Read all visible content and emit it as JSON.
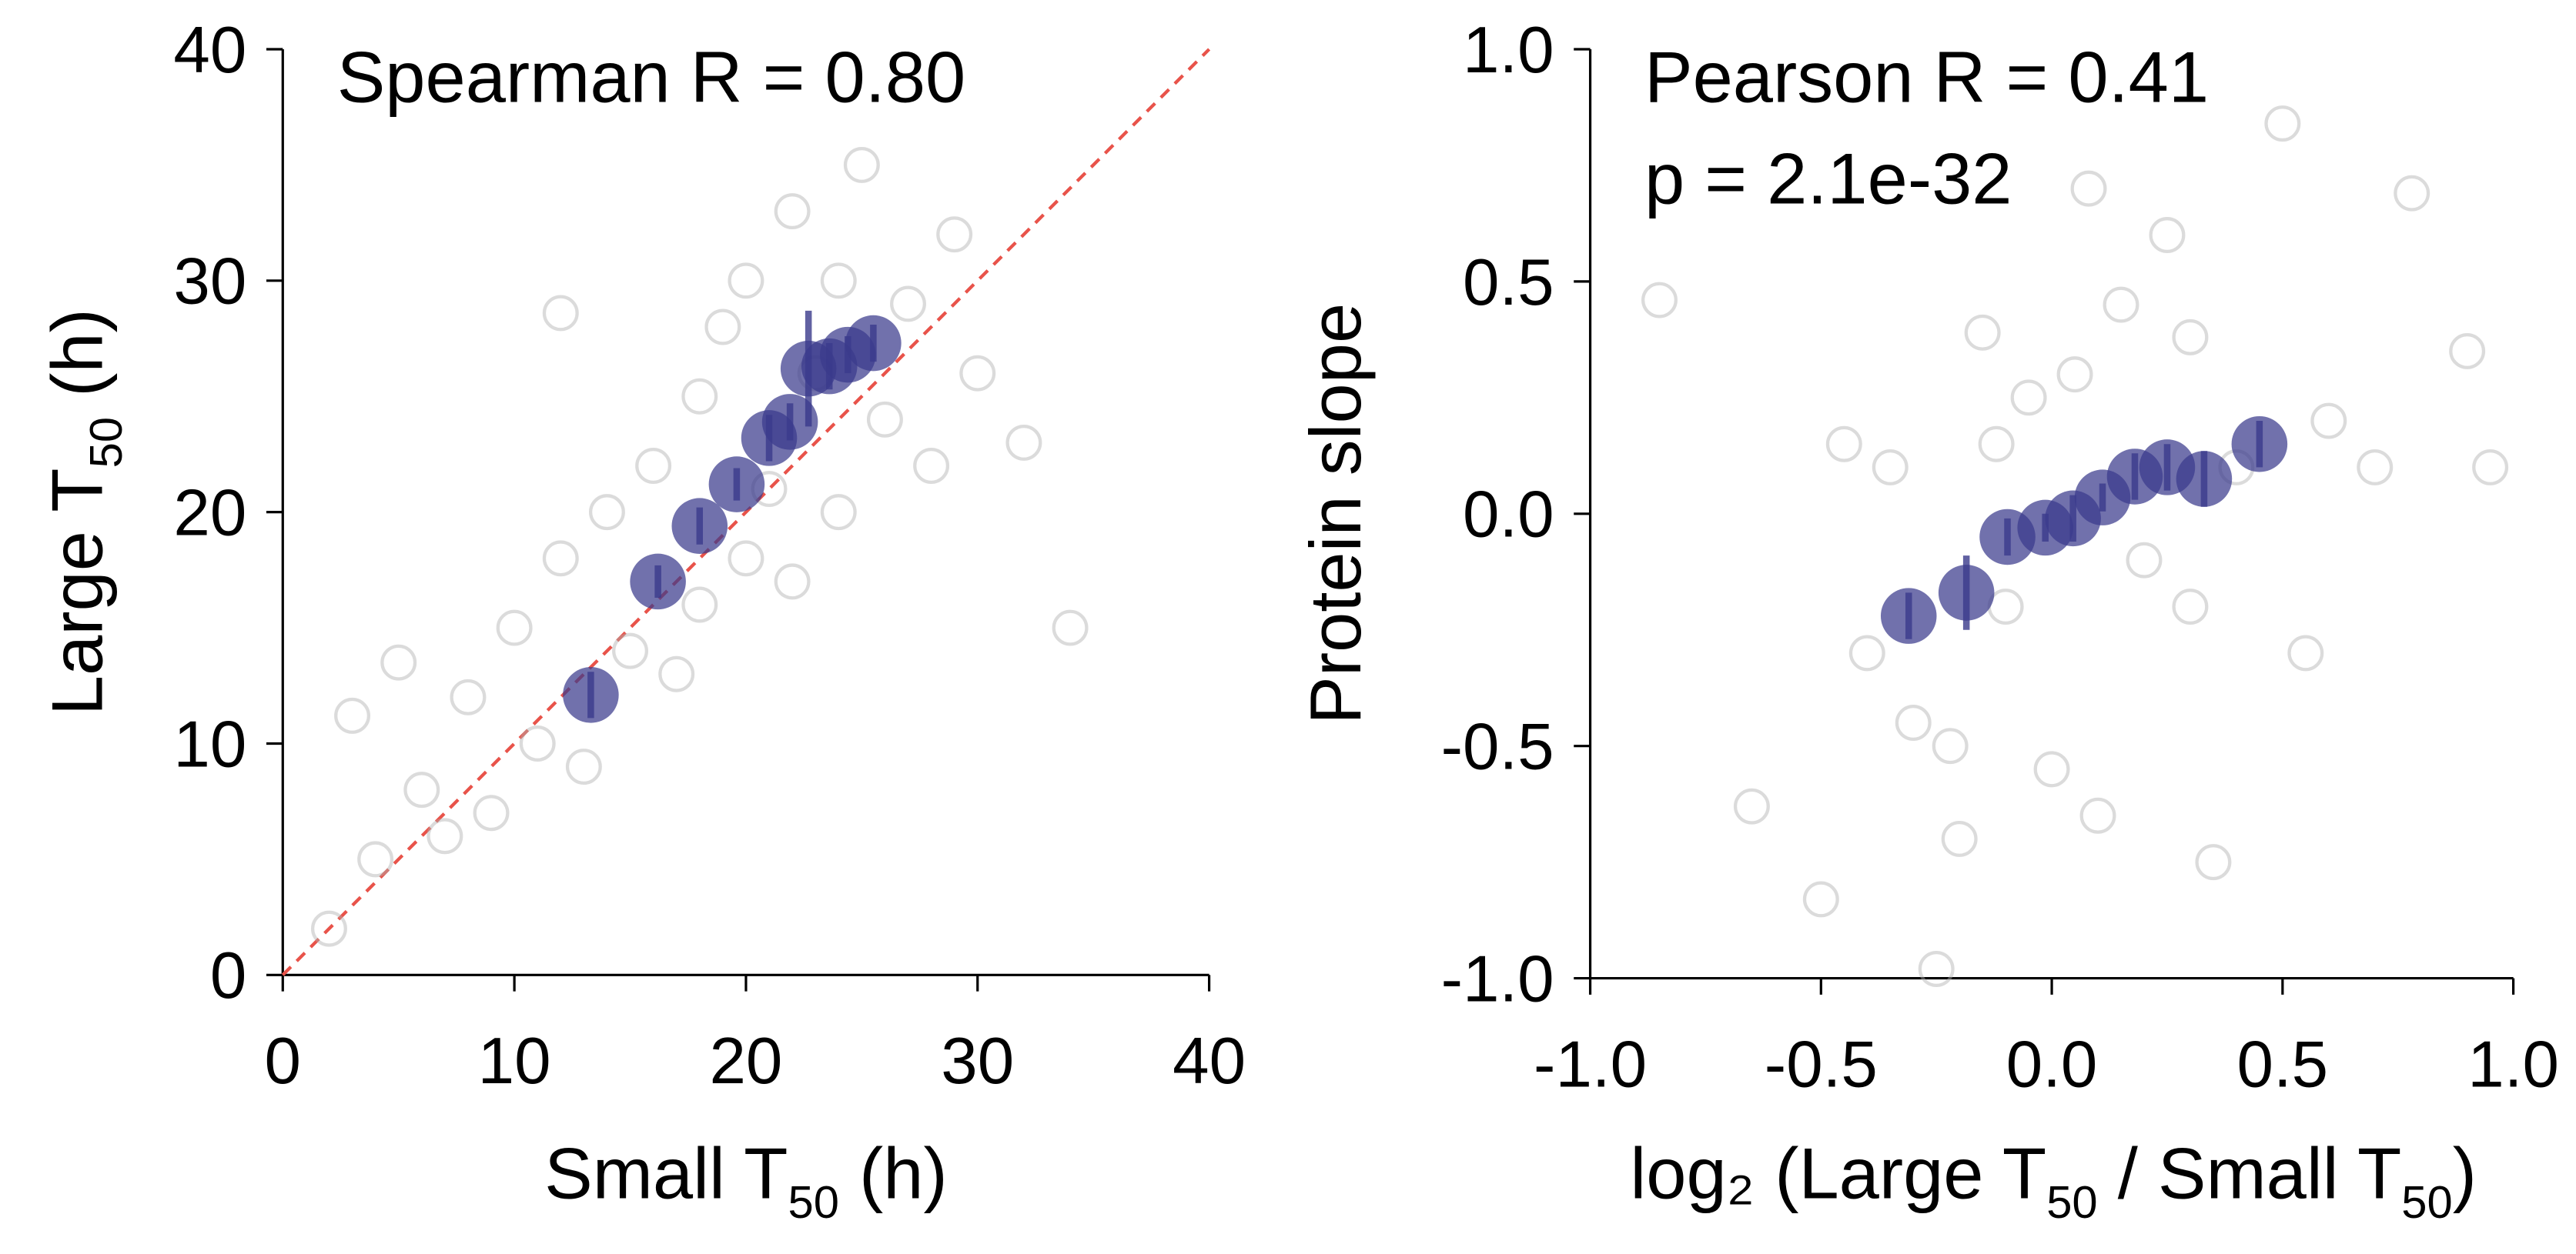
{
  "chart_data": [
    {
      "type": "scatter",
      "xlabel": [
        "Small T",
        "50",
        " (h)"
      ],
      "ylabel": [
        "Large T",
        "50",
        " (h)"
      ],
      "annotations": [
        "Spearman R = 0.80"
      ],
      "xlim": [
        0,
        40
      ],
      "ylim": [
        0,
        40
      ],
      "xticks": [
        0,
        10,
        20,
        30,
        40
      ],
      "yticks": [
        0,
        10,
        20,
        30,
        40
      ],
      "diagonal": true,
      "diagonal_color": "#e8534a",
      "points": {
        "color": "#b0b0b0",
        "x": [
          2,
          4,
          6,
          8,
          9,
          10,
          11,
          12,
          13,
          14,
          15,
          16,
          17,
          18,
          18,
          19,
          20,
          20,
          21,
          22,
          22,
          23,
          24,
          24,
          25,
          26,
          27,
          28,
          29,
          30,
          32,
          34,
          12,
          5,
          3,
          7
        ],
        "y": [
          2,
          5,
          8,
          12,
          7,
          15,
          10,
          18,
          9,
          20,
          14,
          22,
          13,
          25,
          16,
          28,
          18,
          30,
          21,
          33,
          17,
          26,
          20,
          30,
          35,
          24,
          29,
          22,
          32,
          26,
          23,
          15,
          28.6,
          13.5,
          11.2,
          6
        ]
      },
      "binned_means": {
        "color": "#3a3a8c",
        "x": [
          13.3,
          16.2,
          18.0,
          19.6,
          21.0,
          21.9,
          22.7,
          23.6,
          24.4,
          25.5
        ],
        "y": [
          12.1,
          17.0,
          19.4,
          21.2,
          23.2,
          23.9,
          26.2,
          26.3,
          26.8,
          27.3
        ],
        "err": [
          1.0,
          0.7,
          0.8,
          0.7,
          1.0,
          0.8,
          2.5,
          1.0,
          0.8,
          0.8
        ]
      }
    },
    {
      "type": "scatter",
      "xlabel": [
        "log₂ (Large T",
        "50",
        " / Small T",
        "50",
        ")"
      ],
      "ylabel": [
        "Protein slope"
      ],
      "annotations": [
        "Pearson R = 0.41",
        "p = 2.1e-32"
      ],
      "xlim": [
        -1,
        1
      ],
      "ylim": [
        -1,
        1
      ],
      "xticks": [
        {
          "value": -1,
          "label": "-1.0"
        },
        {
          "value": -0.5,
          "label": "-0.5"
        },
        {
          "value": 0,
          "label": "0.0"
        },
        {
          "value": 0.5,
          "label": "0.5"
        },
        {
          "value": 1,
          "label": "1.0"
        }
      ],
      "yticks": [
        {
          "value": -1,
          "label": "-1.0"
        },
        {
          "value": -0.5,
          "label": "-0.5"
        },
        {
          "value": 0,
          "label": "0.0"
        },
        {
          "value": 0.5,
          "label": "0.5"
        },
        {
          "value": 1,
          "label": "1.0"
        }
      ],
      "diagonal": false,
      "points": {
        "color": "#b0b0b0",
        "x": [
          -0.85,
          -0.65,
          -0.5,
          -0.45,
          -0.4,
          -0.35,
          -0.3,
          -0.25,
          -0.2,
          -0.15,
          -0.1,
          -0.05,
          0,
          0.05,
          0.1,
          0.15,
          0.2,
          0.25,
          0.3,
          0.35,
          0.4,
          0.5,
          0.55,
          0.6,
          0.7,
          0.78,
          0.9,
          0.95,
          -0.22,
          0.08,
          -0.12,
          0.3
        ],
        "y": [
          0.46,
          -0.63,
          -0.83,
          0.15,
          -0.3,
          0.1,
          -0.45,
          -0.98,
          -0.7,
          0.39,
          -0.2,
          0.25,
          -0.55,
          0.3,
          -0.65,
          0.45,
          -0.1,
          0.6,
          0.38,
          -0.75,
          0.1,
          0.84,
          -0.3,
          0.2,
          0.1,
          0.69,
          0.35,
          0.1,
          -0.5,
          0.7,
          0.15,
          -0.2
        ]
      },
      "binned_means": {
        "color": "#3a3a8c",
        "x": [
          -0.31,
          -0.185,
          -0.096,
          -0.014,
          0.046,
          0.11,
          0.18,
          0.25,
          0.33,
          0.45
        ],
        "y": [
          -0.22,
          -0.17,
          -0.05,
          -0.03,
          -0.01,
          0.035,
          0.08,
          0.1,
          0.075,
          0.15
        ],
        "err": [
          0.05,
          0.08,
          0.04,
          0.03,
          0.05,
          0.03,
          0.05,
          0.05,
          0.06,
          0.05
        ]
      }
    }
  ]
}
